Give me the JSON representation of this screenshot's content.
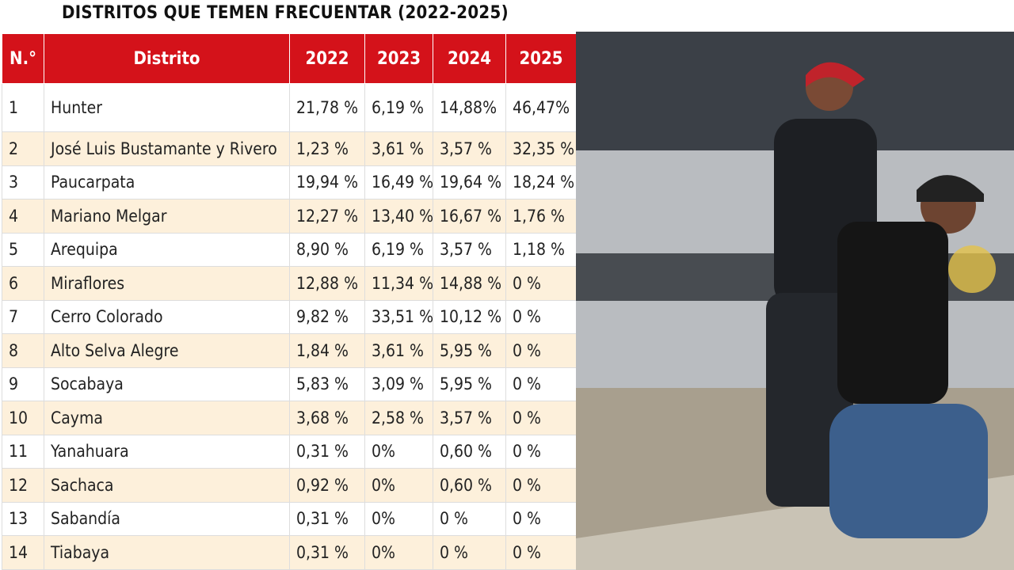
{
  "header": {
    "title": "DISTRITOS QUE TEMEN FRECUENTAR (2022-2025)"
  },
  "table": {
    "columns": [
      "N.°",
      "Distrito",
      "2022",
      "2023",
      "2024",
      "2025"
    ],
    "rows": [
      [
        "1",
        "Hunter",
        "21,78 %",
        "6,19 %",
        "14,88%",
        "46,47%"
      ],
      [
        "2",
        "José Luis Bustamante y Rivero",
        "1,23 %",
        "3,61 %",
        "3,57 %",
        "32,35 %"
      ],
      [
        "3",
        "Paucarpata",
        "19,94 %",
        "16,49 %",
        "19,64 %",
        "18,24 %"
      ],
      [
        "4",
        "Mariano Melgar",
        "12,27 %",
        "13,40 %",
        "16,67 %",
        "1,76 %"
      ],
      [
        "5",
        "Arequipa",
        "8,90 %",
        "6,19 %",
        "3,57 %",
        "1,18 %"
      ],
      [
        "6",
        "Miraflores",
        "12,88 %",
        "11,34 %",
        "14,88 %",
        "0 %"
      ],
      [
        "7",
        "Cerro Colorado",
        "9,82 %",
        "33,51 %",
        "10,12 %",
        "0 %"
      ],
      [
        "8",
        "Alto Selva Alegre",
        "1,84 %",
        "3,61 %",
        "5,95 %",
        "0 %"
      ],
      [
        "9",
        "Socabaya",
        "5,83 %",
        "3,09 %",
        "5,95 %",
        "0 %"
      ],
      [
        "10",
        "Cayma",
        "3,68 %",
        "2,58 %",
        "3,57 %",
        "0 %"
      ],
      [
        "11",
        "Yanahuara",
        "0,31 %",
        "0%",
        "0,60 %",
        "0 %"
      ],
      [
        "12",
        "Sachaca",
        "0,92 %",
        "0%",
        "0,60 %",
        "0 %"
      ],
      [
        "13",
        "Sabandía",
        "0,31 %",
        "0%",
        "0 %",
        "0 %"
      ],
      [
        "14",
        "Tiabaya",
        "0,31 %",
        "0%",
        "0 %",
        "0 %"
      ]
    ]
  }
}
